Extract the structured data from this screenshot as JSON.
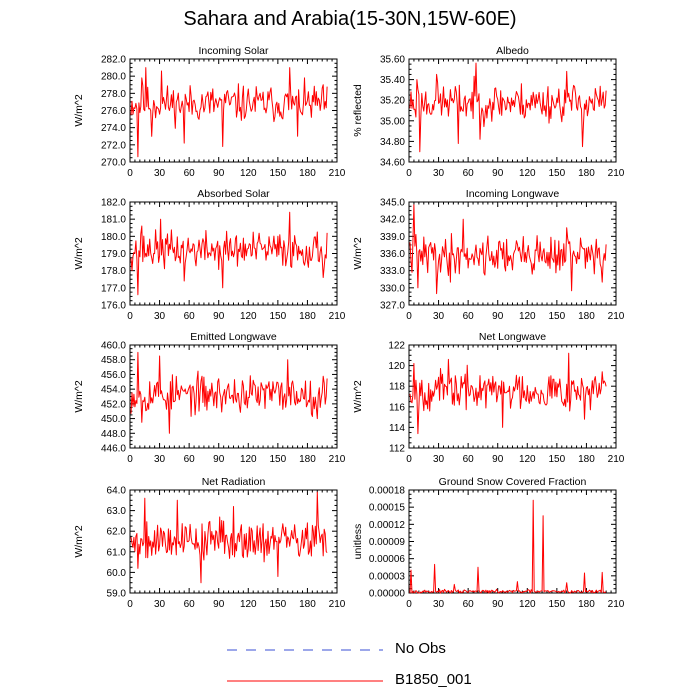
{
  "figure": {
    "title": "Sahara and Arabia(15-30N,15W-60E)",
    "legend": [
      {
        "label": "No Obs",
        "color": "#3a4fd6",
        "style": "dashed"
      },
      {
        "label": "B1850_001",
        "color": "#ff0000",
        "style": "solid"
      }
    ]
  },
  "chart_data": [
    {
      "type": "line",
      "title": "Incoming Solar",
      "ylabel": "W/m^2",
      "xlim": [
        0,
        210
      ],
      "xticks": [
        0,
        30,
        60,
        90,
        120,
        150,
        180,
        210
      ],
      "ylim": [
        270,
        282
      ],
      "yticks": [
        "270.0",
        "272.0",
        "274.0",
        "276.0",
        "278.0",
        "280.0",
        "282.0"
      ],
      "series": [
        {
          "name": "B1850_001",
          "color": "#ff0000",
          "x_start": 1,
          "x_end": 200,
          "mean": 276.8,
          "amp": 1.5,
          "seed": 11,
          "spikes": [
            [
              8,
              270.6
            ],
            [
              12,
              279.8
            ],
            [
              16,
              281.0
            ],
            [
              22,
              273.0
            ],
            [
              32,
              280.6
            ],
            [
              55,
              272.2
            ],
            [
              94,
              271.8
            ],
            [
              162,
              281.0
            ],
            [
              170,
              273.0
            ]
          ]
        }
      ]
    },
    {
      "type": "line",
      "title": "Albedo",
      "ylabel": "% reflected",
      "xlim": [
        0,
        210
      ],
      "xticks": [
        0,
        30,
        60,
        90,
        120,
        150,
        180,
        210
      ],
      "ylim": [
        34.6,
        35.6
      ],
      "yticks": [
        "34.60",
        "34.80",
        "35.00",
        "35.20",
        "35.40",
        "35.60"
      ],
      "series": [
        {
          "name": "B1850_001",
          "color": "#ff0000",
          "x_start": 1,
          "x_end": 200,
          "mean": 35.18,
          "amp": 0.13,
          "seed": 23,
          "spikes": [
            [
              8,
              35.4
            ],
            [
              11,
              34.7
            ],
            [
              28,
              35.45
            ],
            [
              50,
              34.78
            ],
            [
              68,
              35.56
            ],
            [
              72,
              34.82
            ],
            [
              160,
              35.48
            ],
            [
              176,
              34.75
            ]
          ]
        }
      ]
    },
    {
      "type": "line",
      "title": "Absorbed Solar",
      "ylabel": "W/m^2",
      "xlim": [
        0,
        210
      ],
      "xticks": [
        0,
        30,
        60,
        90,
        120,
        150,
        180,
        210
      ],
      "ylim": [
        176,
        182
      ],
      "yticks": [
        "176.0",
        "177.0",
        "178.0",
        "179.0",
        "180.0",
        "181.0",
        "182.0"
      ],
      "series": [
        {
          "name": "B1850_001",
          "color": "#ff0000",
          "x_start": 1,
          "x_end": 200,
          "mean": 179.2,
          "amp": 0.75,
          "seed": 37,
          "spikes": [
            [
              8,
              176.6
            ],
            [
              12,
              180.6
            ],
            [
              31,
              181.0
            ],
            [
              55,
              177.4
            ],
            [
              94,
              177.0
            ],
            [
              162,
              181.4
            ],
            [
              196,
              177.6
            ]
          ]
        }
      ]
    },
    {
      "type": "line",
      "title": "Incoming Longwave",
      "ylabel": "W/m^2",
      "xlim": [
        0,
        210
      ],
      "xticks": [
        0,
        30,
        60,
        90,
        120,
        150,
        180,
        210
      ],
      "ylim": [
        327,
        345
      ],
      "yticks": [
        "327.0",
        "330.0",
        "333.0",
        "336.0",
        "339.0",
        "342.0",
        "345.0"
      ],
      "series": [
        {
          "name": "B1850_001",
          "color": "#ff0000",
          "x_start": 1,
          "x_end": 200,
          "mean": 335.8,
          "amp": 2.4,
          "seed": 41,
          "spikes": [
            [
              5,
              344.5
            ],
            [
              9,
              330.0
            ],
            [
              28,
              329.0
            ],
            [
              55,
              342.0
            ],
            [
              42,
              331.0
            ],
            [
              160,
              340.5
            ],
            [
              165,
              329.5
            ],
            [
              196,
              331.0
            ]
          ]
        }
      ]
    },
    {
      "type": "line",
      "title": "Emitted Longwave",
      "ylabel": "W/m^2",
      "xlim": [
        0,
        210
      ],
      "xticks": [
        0,
        30,
        60,
        90,
        120,
        150,
        180,
        210
      ],
      "ylim": [
        446,
        460
      ],
      "yticks": [
        "446.0",
        "448.0",
        "450.0",
        "452.0",
        "454.0",
        "456.0",
        "458.0",
        "460.0"
      ],
      "series": [
        {
          "name": "B1850_001",
          "color": "#ff0000",
          "x_start": 1,
          "x_end": 200,
          "mean": 453.3,
          "amp": 1.8,
          "seed": 53,
          "spikes": [
            [
              8,
              459.0
            ],
            [
              12,
              449.5
            ],
            [
              40,
              448.0
            ],
            [
              30,
              458.5
            ],
            [
              160,
              458.0
            ],
            [
              190,
              450.0
            ]
          ]
        }
      ]
    },
    {
      "type": "line",
      "title": "Net Longwave",
      "ylabel": "W/m^2",
      "xlim": [
        0,
        210
      ],
      "xticks": [
        0,
        30,
        60,
        90,
        120,
        150,
        180,
        210
      ],
      "ylim": [
        112,
        122
      ],
      "yticks": [
        "112",
        "114",
        "116",
        "118",
        "120",
        "122"
      ],
      "series": [
        {
          "name": "B1850_001",
          "color": "#ff0000",
          "x_start": 1,
          "x_end": 200,
          "mean": 117.6,
          "amp": 1.3,
          "seed": 67,
          "spikes": [
            [
              5,
              120.2
            ],
            [
              9,
              113.4
            ],
            [
              40,
              120.6
            ],
            [
              95,
              114.0
            ],
            [
              162,
              121.2
            ],
            [
              178,
              114.8
            ],
            [
              196,
              119.4
            ]
          ]
        }
      ]
    },
    {
      "type": "line",
      "title": "Net Radiation",
      "ylabel": "W/m^2",
      "xlim": [
        0,
        210
      ],
      "xticks": [
        0,
        30,
        60,
        90,
        120,
        150,
        180,
        210
      ],
      "ylim": [
        59,
        64
      ],
      "yticks": [
        "59.0",
        "60.0",
        "61.0",
        "62.0",
        "63.0",
        "64.0"
      ],
      "series": [
        {
          "name": "B1850_001",
          "color": "#ff0000",
          "x_start": 1,
          "x_end": 200,
          "mean": 61.6,
          "amp": 0.7,
          "seed": 79,
          "spikes": [
            [
              15,
              63.6
            ],
            [
              8,
              60.2
            ],
            [
              48,
              63.5
            ],
            [
              72,
              59.5
            ],
            [
              105,
              63.2
            ],
            [
              150,
              59.8
            ],
            [
              190,
              63.9
            ],
            [
              196,
              60.8
            ]
          ]
        }
      ]
    },
    {
      "type": "line",
      "title": "Ground Snow Covered Fraction",
      "ylabel": "unitless",
      "xlim": [
        0,
        210
      ],
      "xticks": [
        0,
        30,
        60,
        90,
        120,
        150,
        180,
        210
      ],
      "ylim": [
        0,
        0.00018
      ],
      "yticks": [
        "0.00000",
        "0.00003",
        "0.00006",
        "0.00009",
        "0.00012",
        "0.00015",
        "0.00018"
      ],
      "series": [
        {
          "name": "B1850_001",
          "color": "#ff0000",
          "x_start": 1,
          "x_end": 200,
          "mean": 2.5e-06,
          "amp": 2e-06,
          "seed": 97,
          "floor": 0,
          "spikes": [
            [
              2,
              4e-05
            ],
            [
              26,
              5e-05
            ],
            [
              70,
              4.5e-05
            ],
            [
              46,
              1.5e-05
            ],
            [
              126,
              0.000162
            ],
            [
              136,
              0.000135
            ],
            [
              110,
              2e-05
            ],
            [
              178,
              3.5e-05
            ],
            [
              196,
              3.6e-05
            ],
            [
              160,
              1.8e-05
            ]
          ]
        }
      ]
    }
  ]
}
